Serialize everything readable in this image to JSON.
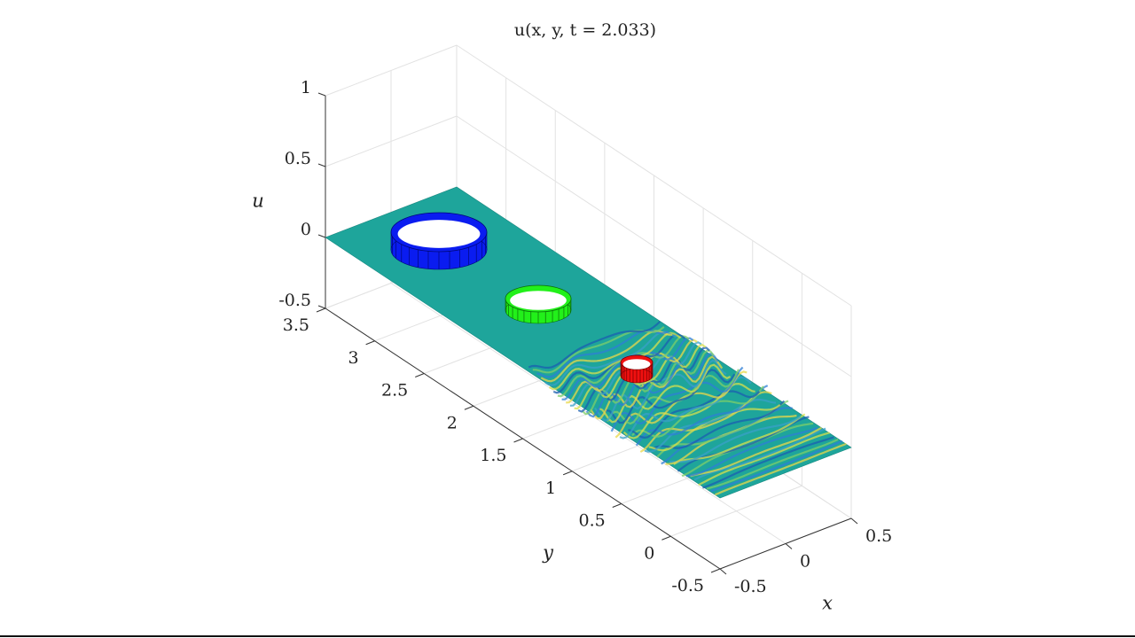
{
  "chart_data": {
    "type": "surface",
    "title": "u(x, y, t = 2.033)",
    "xlabel": "x",
    "ylabel": "y",
    "zlabel": "u",
    "xlim": [
      -0.5,
      0.5
    ],
    "ylim": [
      -0.5,
      3.5
    ],
    "zlim": [
      -0.5,
      1
    ],
    "xticks": [
      -0.5,
      0,
      0.5
    ],
    "yticks": [
      -0.5,
      0,
      0.5,
      1,
      1.5,
      2,
      2.5,
      3,
      3.5
    ],
    "zticks": [
      -0.5,
      0,
      0.5,
      1
    ],
    "grid": true
  }
}
